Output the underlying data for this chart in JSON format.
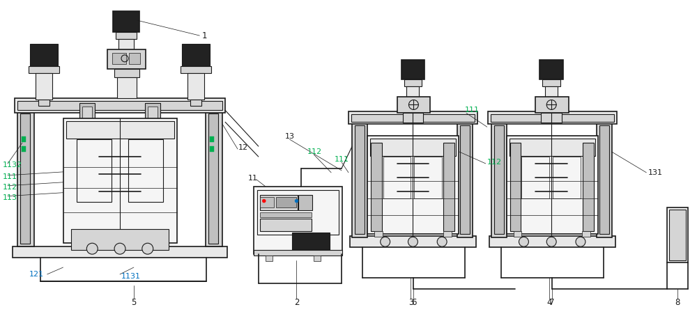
{
  "bg_color": "#ffffff",
  "lc": "#1a1a1a",
  "dark": "#222222",
  "gray1": "#e8e8e8",
  "gray2": "#d5d5d5",
  "gray3": "#c0c0c0",
  "gray4": "#a8a8a8",
  "gray5": "#888888",
  "gray6": "#f5f5f5",
  "green": "#00b050",
  "blue": "#0070c0",
  "figsize": [
    10.0,
    4.51
  ],
  "dpi": 100
}
